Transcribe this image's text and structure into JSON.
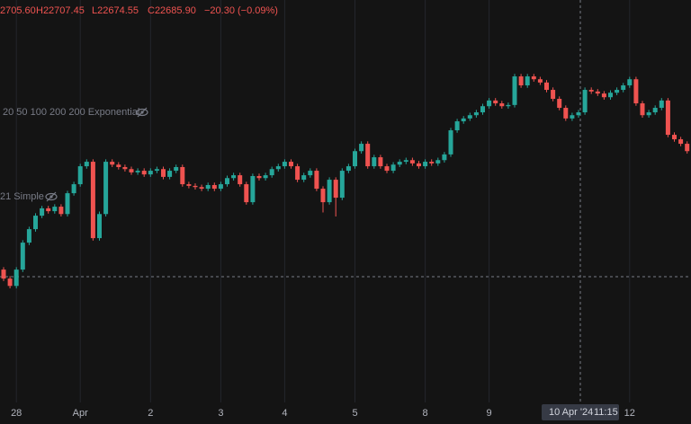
{
  "chart_data": {
    "type": "candlestick",
    "ohlc_readout": [
      "2705.60",
      "H22707.45",
      "L22674.55",
      "C22685.90",
      "−20.30 (−0.09%)"
    ],
    "indicators": [
      "20 50 100 200 200 Exponential",
      "21 Simple"
    ],
    "crosshair_label": "10 Apr '24",
    "crosshair_time": "11:15",
    "categories": [
      null,
      null,
      "28",
      null,
      null,
      null,
      null,
      null,
      null,
      null,
      null,
      null,
      "Apr",
      null,
      null,
      null,
      null,
      null,
      null,
      null,
      null,
      null,
      null,
      "2",
      null,
      null,
      null,
      null,
      null,
      null,
      null,
      null,
      null,
      null,
      "3",
      null,
      null,
      null,
      null,
      null,
      null,
      null,
      null,
      null,
      "4",
      null,
      null,
      null,
      null,
      null,
      null,
      null,
      null,
      null,
      null,
      "5",
      null,
      null,
      null,
      null,
      null,
      null,
      null,
      null,
      null,
      null,
      "8",
      null,
      null,
      null,
      null,
      null,
      null,
      null,
      null,
      null,
      "9",
      null,
      null,
      null,
      null,
      null,
      null,
      null,
      null,
      null,
      null,
      null,
      null,
      null,
      null,
      null,
      null,
      null,
      null,
      null,
      null,
      null,
      "12",
      null,
      null,
      null,
      null,
      null,
      null,
      null,
      null,
      null
    ],
    "open": [
      22400,
      22378,
      22360,
      22400,
      22466,
      22499,
      22532,
      22550,
      22543,
      22554,
      22536,
      22587,
      22609,
      22653,
      22664,
      22477,
      22536,
      22664,
      22657,
      22651,
      22646,
      22638,
      22642,
      22633,
      22642,
      22646,
      22627,
      22642,
      22651,
      22609,
      22605,
      22602,
      22598,
      22607,
      22598,
      22609,
      22624,
      22631,
      22609,
      22565,
      22629,
      22624,
      22631,
      22646,
      22653,
      22664,
      22653,
      22620,
      22631,
      22642,
      22598,
      22565,
      22620,
      22576,
      22642,
      22653,
      22690,
      22708,
      22653,
      22675,
      22653,
      22642,
      22657,
      22664,
      22668,
      22660,
      22653,
      22664,
      22660,
      22668,
      22682,
      22741,
      22763,
      22770,
      22778,
      22785,
      22800,
      22814,
      22807,
      22800,
      22803,
      22873,
      22851,
      22873,
      22866,
      22858,
      22840,
      22818,
      22796,
      22770,
      22778,
      22785,
      22840,
      22836,
      22831,
      22822,
      22833,
      22840,
      22851,
      22866,
      22807,
      22778,
      22785,
      22796,
      22814,
      22730,
      22719,
      22708
    ],
    "high": [
      22406,
      22384,
      22406,
      22472,
      22505,
      22538,
      22556,
      22556,
      22560,
      22560,
      22593,
      22615,
      22659,
      22670,
      22670,
      22542,
      22670,
      22670,
      22663,
      22657,
      22652,
      22648,
      22648,
      22648,
      22652,
      22652,
      22648,
      22657,
      22657,
      22615,
      22611,
      22608,
      22613,
      22613,
      22615,
      22630,
      22637,
      22637,
      22615,
      22635,
      22635,
      22637,
      22652,
      22659,
      22670,
      22670,
      22659,
      22637,
      22648,
      22648,
      22604,
      22626,
      22626,
      22648,
      22659,
      22696,
      22714,
      22714,
      22681,
      22681,
      22659,
      22663,
      22670,
      22674,
      22674,
      22666,
      22670,
      22670,
      22674,
      22688,
      22747,
      22769,
      22776,
      22784,
      22791,
      22806,
      22820,
      22820,
      22813,
      22809,
      22879,
      22879,
      22879,
      22879,
      22872,
      22864,
      22846,
      22824,
      22802,
      22784,
      22791,
      22846,
      22846,
      22842,
      22837,
      22839,
      22846,
      22857,
      22872,
      22872,
      22813,
      22791,
      22802,
      22820,
      22820,
      22736,
      22725,
      22714
    ],
    "low": [
      22372,
      22354,
      22354,
      22394,
      22460,
      22493,
      22526,
      22537,
      22537,
      22530,
      22530,
      22581,
      22603,
      22647,
      22471,
      22471,
      22530,
      22651,
      22645,
      22640,
      22632,
      22632,
      22627,
      22627,
      22636,
      22621,
      22621,
      22636,
      22603,
      22599,
      22596,
      22592,
      22592,
      22592,
      22592,
      22603,
      22618,
      22603,
      22559,
      22559,
      22618,
      22618,
      22625,
      22640,
      22647,
      22647,
      22614,
      22614,
      22625,
      22592,
      22540,
      22559,
      22530,
      22570,
      22636,
      22647,
      22684,
      22647,
      22647,
      22647,
      22636,
      22636,
      22651,
      22658,
      22654,
      22647,
      22647,
      22654,
      22654,
      22662,
      22676,
      22735,
      22757,
      22764,
      22772,
      22779,
      22794,
      22801,
      22794,
      22794,
      22797,
      22845,
      22845,
      22860,
      22852,
      22834,
      22812,
      22790,
      22764,
      22764,
      22772,
      22779,
      22830,
      22825,
      22816,
      22816,
      22827,
      22834,
      22845,
      22801,
      22772,
      22772,
      22779,
      22790,
      22724,
      22713,
      22702,
      22684
    ],
    "close": [
      22378,
      22360,
      22400,
      22466,
      22499,
      22532,
      22550,
      22543,
      22554,
      22536,
      22587,
      22609,
      22653,
      22664,
      22477,
      22536,
      22664,
      22657,
      22651,
      22646,
      22638,
      22642,
      22633,
      22642,
      22646,
      22627,
      22642,
      22651,
      22609,
      22605,
      22602,
      22598,
      22607,
      22598,
      22609,
      22624,
      22631,
      22609,
      22565,
      22629,
      22624,
      22631,
      22646,
      22653,
      22664,
      22653,
      22620,
      22631,
      22642,
      22598,
      22565,
      22620,
      22576,
      22642,
      22653,
      22690,
      22708,
      22653,
      22675,
      22653,
      22642,
      22657,
      22664,
      22668,
      22660,
      22653,
      22664,
      22660,
      22668,
      22682,
      22741,
      22763,
      22770,
      22778,
      22785,
      22800,
      22814,
      22807,
      22800,
      22803,
      22873,
      22851,
      22873,
      22866,
      22858,
      22840,
      22818,
      22796,
      22770,
      22778,
      22785,
      22840,
      22836,
      22831,
      22822,
      22833,
      22840,
      22851,
      22866,
      22807,
      22778,
      22785,
      22796,
      22814,
      22730,
      22719,
      22708,
      22690
    ],
    "ylim": [
      22022,
      23060
    ],
    "up_color": "#26a69a",
    "down_color": "#ef5350",
    "grid": true
  }
}
